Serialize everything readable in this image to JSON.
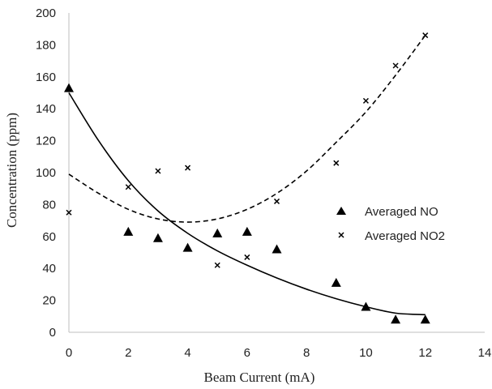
{
  "chart_data": {
    "type": "scatter",
    "title": "",
    "xlabel": "Beam Current (mA)",
    "ylabel": "Concentration (ppm)",
    "xlim": [
      0,
      14
    ],
    "ylim": [
      0,
      200
    ],
    "x_ticks": [
      "0",
      "2",
      "4",
      "6",
      "8",
      "10",
      "12",
      "14"
    ],
    "y_ticks": [
      "0",
      "20",
      "40",
      "60",
      "80",
      "100",
      "120",
      "140",
      "160",
      "180",
      "200"
    ],
    "grid": false,
    "legend_position": "right",
    "series": [
      {
        "name": "Averaged NO",
        "marker": "triangle",
        "color": "#000000",
        "x": [
          0,
          2,
          3,
          4,
          5,
          6,
          7,
          9,
          10,
          11,
          12
        ],
        "y": [
          153,
          63,
          59,
          53,
          62,
          63,
          52,
          31,
          16,
          8,
          8
        ]
      },
      {
        "name": "Averaged NO2",
        "marker": "x",
        "color": "#000000",
        "x": [
          0,
          2,
          3,
          4,
          5,
          6,
          7,
          9,
          10,
          11,
          12
        ],
        "y": [
          75,
          91,
          101,
          103,
          42,
          47,
          82,
          106,
          145,
          167,
          186
        ]
      }
    ],
    "trendlines": [
      {
        "style": "solid",
        "x": [
          0,
          1,
          2,
          3,
          4,
          5,
          6,
          7,
          8,
          9,
          10,
          11,
          12
        ],
        "y": [
          150,
          120,
          95,
          76,
          62,
          51,
          42,
          34,
          27,
          21,
          16,
          12,
          11
        ]
      },
      {
        "style": "dashed",
        "x": [
          0,
          1,
          2,
          3,
          4,
          5,
          6,
          7,
          8,
          9,
          10,
          11,
          12
        ],
        "y": [
          99,
          87,
          77,
          71,
          69,
          71,
          77,
          87,
          101,
          119,
          138,
          161,
          186
        ]
      }
    ]
  }
}
